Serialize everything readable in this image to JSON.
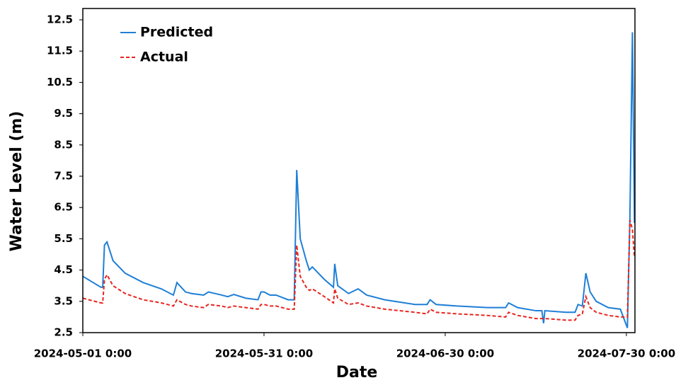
{
  "chart_data": {
    "type": "line",
    "x_label": "Date",
    "y_label": "Water Level (m)",
    "x": [
      "2024-05-01 0:00",
      "2024-05-04 0:00",
      "2024-05-04 7:00",
      "2024-05-04 14:00",
      "2024-05-05 0:00",
      "2024-05-06 0:00",
      "2024-05-08 0:00",
      "2024-05-11 0:00",
      "2024-05-14 0:00",
      "2024-05-16 0:00",
      "2024-05-16 14:00",
      "2024-05-18 0:00",
      "2024-05-19 0:00",
      "2024-05-21 0:00",
      "2024-05-21 19:00",
      "2024-05-24 0:00",
      "2024-05-25 0:00",
      "2024-05-26 0:00",
      "2024-05-28 0:00",
      "2024-05-30 0:00",
      "2024-05-30 12:00",
      "2024-05-31 0:00",
      "2024-06-01 0:00",
      "2024-06-02 0:00",
      "2024-06-04 0:00",
      "2024-06-05 0:00",
      "2024-06-05 10:00",
      "2024-06-06 0:00",
      "2024-06-07 0:00",
      "2024-06-07 12:00",
      "2024-06-08 0:00",
      "2024-06-10 0:00",
      "2024-06-11 12:00",
      "2024-06-11 17:00",
      "2024-06-12 5:00",
      "2024-06-14 0:00",
      "2024-06-15 14:00",
      "2024-06-17 0:00",
      "2024-06-20 0:00",
      "2024-06-25 0:00",
      "2024-06-27 0:00",
      "2024-06-27 12:00",
      "2024-06-28 12:00",
      "2024-07-02 0:00",
      "2024-07-07 0:00",
      "2024-07-10 0:00",
      "2024-07-10 12:00",
      "2024-07-12 0:00",
      "2024-07-15 0:00",
      "2024-07-16 0:00",
      "2024-07-16 7:00",
      "2024-07-16 12:00",
      "2024-07-20 0:00",
      "2024-07-21 12:00",
      "2024-07-22 0:00",
      "2024-07-22 17:00",
      "2024-07-23 7:00",
      "2024-07-24 0:00",
      "2024-07-25 0:00",
      "2024-07-27 0:00",
      "2024-07-29 0:00",
      "2024-07-30 4:00",
      "2024-07-30 14:00",
      "2024-07-31 0:00",
      "2024-07-31 8:00"
    ],
    "series": [
      {
        "name": "Predicted",
        "color": "#1f7fd6",
        "dash": false,
        "values": [
          4.3,
          3.95,
          3.95,
          5.3,
          5.4,
          4.8,
          4.4,
          4.1,
          3.9,
          3.7,
          4.1,
          3.8,
          3.75,
          3.7,
          3.8,
          3.7,
          3.65,
          3.72,
          3.6,
          3.55,
          3.8,
          3.8,
          3.7,
          3.7,
          3.55,
          3.55,
          7.7,
          5.5,
          4.8,
          4.5,
          4.6,
          4.2,
          3.95,
          4.7,
          4.0,
          3.75,
          3.9,
          3.7,
          3.55,
          3.4,
          3.4,
          3.55,
          3.4,
          3.35,
          3.3,
          3.3,
          3.45,
          3.3,
          3.2,
          3.2,
          2.8,
          3.2,
          3.15,
          3.15,
          3.4,
          3.35,
          4.4,
          3.8,
          3.5,
          3.3,
          3.25,
          2.65,
          6.2,
          12.1,
          6.0
        ]
      },
      {
        "name": "Actual",
        "color": "#e8251f",
        "dash": true,
        "values": [
          3.6,
          3.45,
          3.45,
          4.2,
          4.35,
          4.0,
          3.75,
          3.55,
          3.45,
          3.35,
          3.55,
          3.4,
          3.35,
          3.3,
          3.4,
          3.35,
          3.3,
          3.35,
          3.3,
          3.25,
          3.4,
          3.4,
          3.35,
          3.35,
          3.25,
          3.25,
          5.3,
          4.3,
          3.95,
          3.85,
          3.9,
          3.65,
          3.45,
          3.9,
          3.6,
          3.4,
          3.45,
          3.35,
          3.25,
          3.15,
          3.1,
          3.25,
          3.15,
          3.1,
          3.05,
          3.0,
          3.15,
          3.05,
          2.95,
          2.95,
          2.95,
          2.95,
          2.9,
          2.9,
          3.05,
          3.1,
          3.65,
          3.3,
          3.15,
          3.05,
          3.0,
          3.0,
          6.1,
          5.8,
          4.9
        ]
      }
    ],
    "xlim": [
      "2024-05-01 0:00",
      "2024-07-31 10:00"
    ],
    "xticks": [
      "2024-05-01 0:00",
      "2024-05-31 0:00",
      "2024-06-30 0:00",
      "2024-07-30 0:00"
    ],
    "ylim": [
      2.5,
      12.5
    ],
    "yticks": [
      2.5,
      3.5,
      4.5,
      5.5,
      6.5,
      7.5,
      8.5,
      9.5,
      10.5,
      11.5,
      12.5
    ],
    "legend": "upper left"
  }
}
